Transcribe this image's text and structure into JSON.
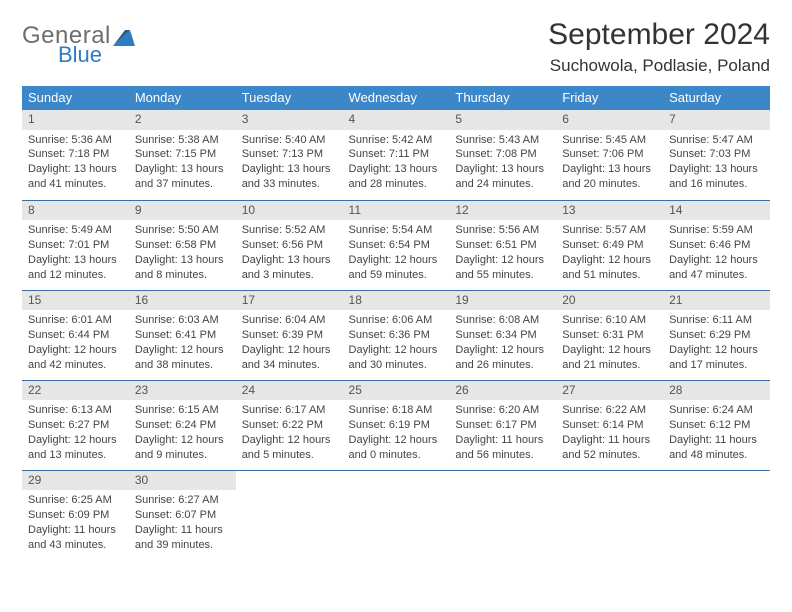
{
  "brand": {
    "word1": "General",
    "word2": "Blue",
    "text_color_1": "#6e6e6e",
    "text_color_2": "#2f7bbf",
    "mark_color": "#2f7bbf"
  },
  "title": "September 2024",
  "location": "Suchowola, Podlasie, Poland",
  "header_bg": "#3b87c8",
  "header_fg": "#ffffff",
  "daynum_bg": "#e6e6e6",
  "rule_color": "#3b6fa3",
  "columns": [
    "Sunday",
    "Monday",
    "Tuesday",
    "Wednesday",
    "Thursday",
    "Friday",
    "Saturday"
  ],
  "weeks": [
    [
      {
        "n": "1",
        "sr": "Sunrise: 5:36 AM",
        "ss": "Sunset: 7:18 PM",
        "d1": "Daylight: 13 hours",
        "d2": "and 41 minutes."
      },
      {
        "n": "2",
        "sr": "Sunrise: 5:38 AM",
        "ss": "Sunset: 7:15 PM",
        "d1": "Daylight: 13 hours",
        "d2": "and 37 minutes."
      },
      {
        "n": "3",
        "sr": "Sunrise: 5:40 AM",
        "ss": "Sunset: 7:13 PM",
        "d1": "Daylight: 13 hours",
        "d2": "and 33 minutes."
      },
      {
        "n": "4",
        "sr": "Sunrise: 5:42 AM",
        "ss": "Sunset: 7:11 PM",
        "d1": "Daylight: 13 hours",
        "d2": "and 28 minutes."
      },
      {
        "n": "5",
        "sr": "Sunrise: 5:43 AM",
        "ss": "Sunset: 7:08 PM",
        "d1": "Daylight: 13 hours",
        "d2": "and 24 minutes."
      },
      {
        "n": "6",
        "sr": "Sunrise: 5:45 AM",
        "ss": "Sunset: 7:06 PM",
        "d1": "Daylight: 13 hours",
        "d2": "and 20 minutes."
      },
      {
        "n": "7",
        "sr": "Sunrise: 5:47 AM",
        "ss": "Sunset: 7:03 PM",
        "d1": "Daylight: 13 hours",
        "d2": "and 16 minutes."
      }
    ],
    [
      {
        "n": "8",
        "sr": "Sunrise: 5:49 AM",
        "ss": "Sunset: 7:01 PM",
        "d1": "Daylight: 13 hours",
        "d2": "and 12 minutes."
      },
      {
        "n": "9",
        "sr": "Sunrise: 5:50 AM",
        "ss": "Sunset: 6:58 PM",
        "d1": "Daylight: 13 hours",
        "d2": "and 8 minutes."
      },
      {
        "n": "10",
        "sr": "Sunrise: 5:52 AM",
        "ss": "Sunset: 6:56 PM",
        "d1": "Daylight: 13 hours",
        "d2": "and 3 minutes."
      },
      {
        "n": "11",
        "sr": "Sunrise: 5:54 AM",
        "ss": "Sunset: 6:54 PM",
        "d1": "Daylight: 12 hours",
        "d2": "and 59 minutes."
      },
      {
        "n": "12",
        "sr": "Sunrise: 5:56 AM",
        "ss": "Sunset: 6:51 PM",
        "d1": "Daylight: 12 hours",
        "d2": "and 55 minutes."
      },
      {
        "n": "13",
        "sr": "Sunrise: 5:57 AM",
        "ss": "Sunset: 6:49 PM",
        "d1": "Daylight: 12 hours",
        "d2": "and 51 minutes."
      },
      {
        "n": "14",
        "sr": "Sunrise: 5:59 AM",
        "ss": "Sunset: 6:46 PM",
        "d1": "Daylight: 12 hours",
        "d2": "and 47 minutes."
      }
    ],
    [
      {
        "n": "15",
        "sr": "Sunrise: 6:01 AM",
        "ss": "Sunset: 6:44 PM",
        "d1": "Daylight: 12 hours",
        "d2": "and 42 minutes."
      },
      {
        "n": "16",
        "sr": "Sunrise: 6:03 AM",
        "ss": "Sunset: 6:41 PM",
        "d1": "Daylight: 12 hours",
        "d2": "and 38 minutes."
      },
      {
        "n": "17",
        "sr": "Sunrise: 6:04 AM",
        "ss": "Sunset: 6:39 PM",
        "d1": "Daylight: 12 hours",
        "d2": "and 34 minutes."
      },
      {
        "n": "18",
        "sr": "Sunrise: 6:06 AM",
        "ss": "Sunset: 6:36 PM",
        "d1": "Daylight: 12 hours",
        "d2": "and 30 minutes."
      },
      {
        "n": "19",
        "sr": "Sunrise: 6:08 AM",
        "ss": "Sunset: 6:34 PM",
        "d1": "Daylight: 12 hours",
        "d2": "and 26 minutes."
      },
      {
        "n": "20",
        "sr": "Sunrise: 6:10 AM",
        "ss": "Sunset: 6:31 PM",
        "d1": "Daylight: 12 hours",
        "d2": "and 21 minutes."
      },
      {
        "n": "21",
        "sr": "Sunrise: 6:11 AM",
        "ss": "Sunset: 6:29 PM",
        "d1": "Daylight: 12 hours",
        "d2": "and 17 minutes."
      }
    ],
    [
      {
        "n": "22",
        "sr": "Sunrise: 6:13 AM",
        "ss": "Sunset: 6:27 PM",
        "d1": "Daylight: 12 hours",
        "d2": "and 13 minutes."
      },
      {
        "n": "23",
        "sr": "Sunrise: 6:15 AM",
        "ss": "Sunset: 6:24 PM",
        "d1": "Daylight: 12 hours",
        "d2": "and 9 minutes."
      },
      {
        "n": "24",
        "sr": "Sunrise: 6:17 AM",
        "ss": "Sunset: 6:22 PM",
        "d1": "Daylight: 12 hours",
        "d2": "and 5 minutes."
      },
      {
        "n": "25",
        "sr": "Sunrise: 6:18 AM",
        "ss": "Sunset: 6:19 PM",
        "d1": "Daylight: 12 hours",
        "d2": "and 0 minutes."
      },
      {
        "n": "26",
        "sr": "Sunrise: 6:20 AM",
        "ss": "Sunset: 6:17 PM",
        "d1": "Daylight: 11 hours",
        "d2": "and 56 minutes."
      },
      {
        "n": "27",
        "sr": "Sunrise: 6:22 AM",
        "ss": "Sunset: 6:14 PM",
        "d1": "Daylight: 11 hours",
        "d2": "and 52 minutes."
      },
      {
        "n": "28",
        "sr": "Sunrise: 6:24 AM",
        "ss": "Sunset: 6:12 PM",
        "d1": "Daylight: 11 hours",
        "d2": "and 48 minutes."
      }
    ],
    [
      {
        "n": "29",
        "sr": "Sunrise: 6:25 AM",
        "ss": "Sunset: 6:09 PM",
        "d1": "Daylight: 11 hours",
        "d2": "and 43 minutes."
      },
      {
        "n": "30",
        "sr": "Sunrise: 6:27 AM",
        "ss": "Sunset: 6:07 PM",
        "d1": "Daylight: 11 hours",
        "d2": "and 39 minutes."
      },
      {
        "empty": true
      },
      {
        "empty": true
      },
      {
        "empty": true
      },
      {
        "empty": true
      },
      {
        "empty": true
      }
    ]
  ]
}
